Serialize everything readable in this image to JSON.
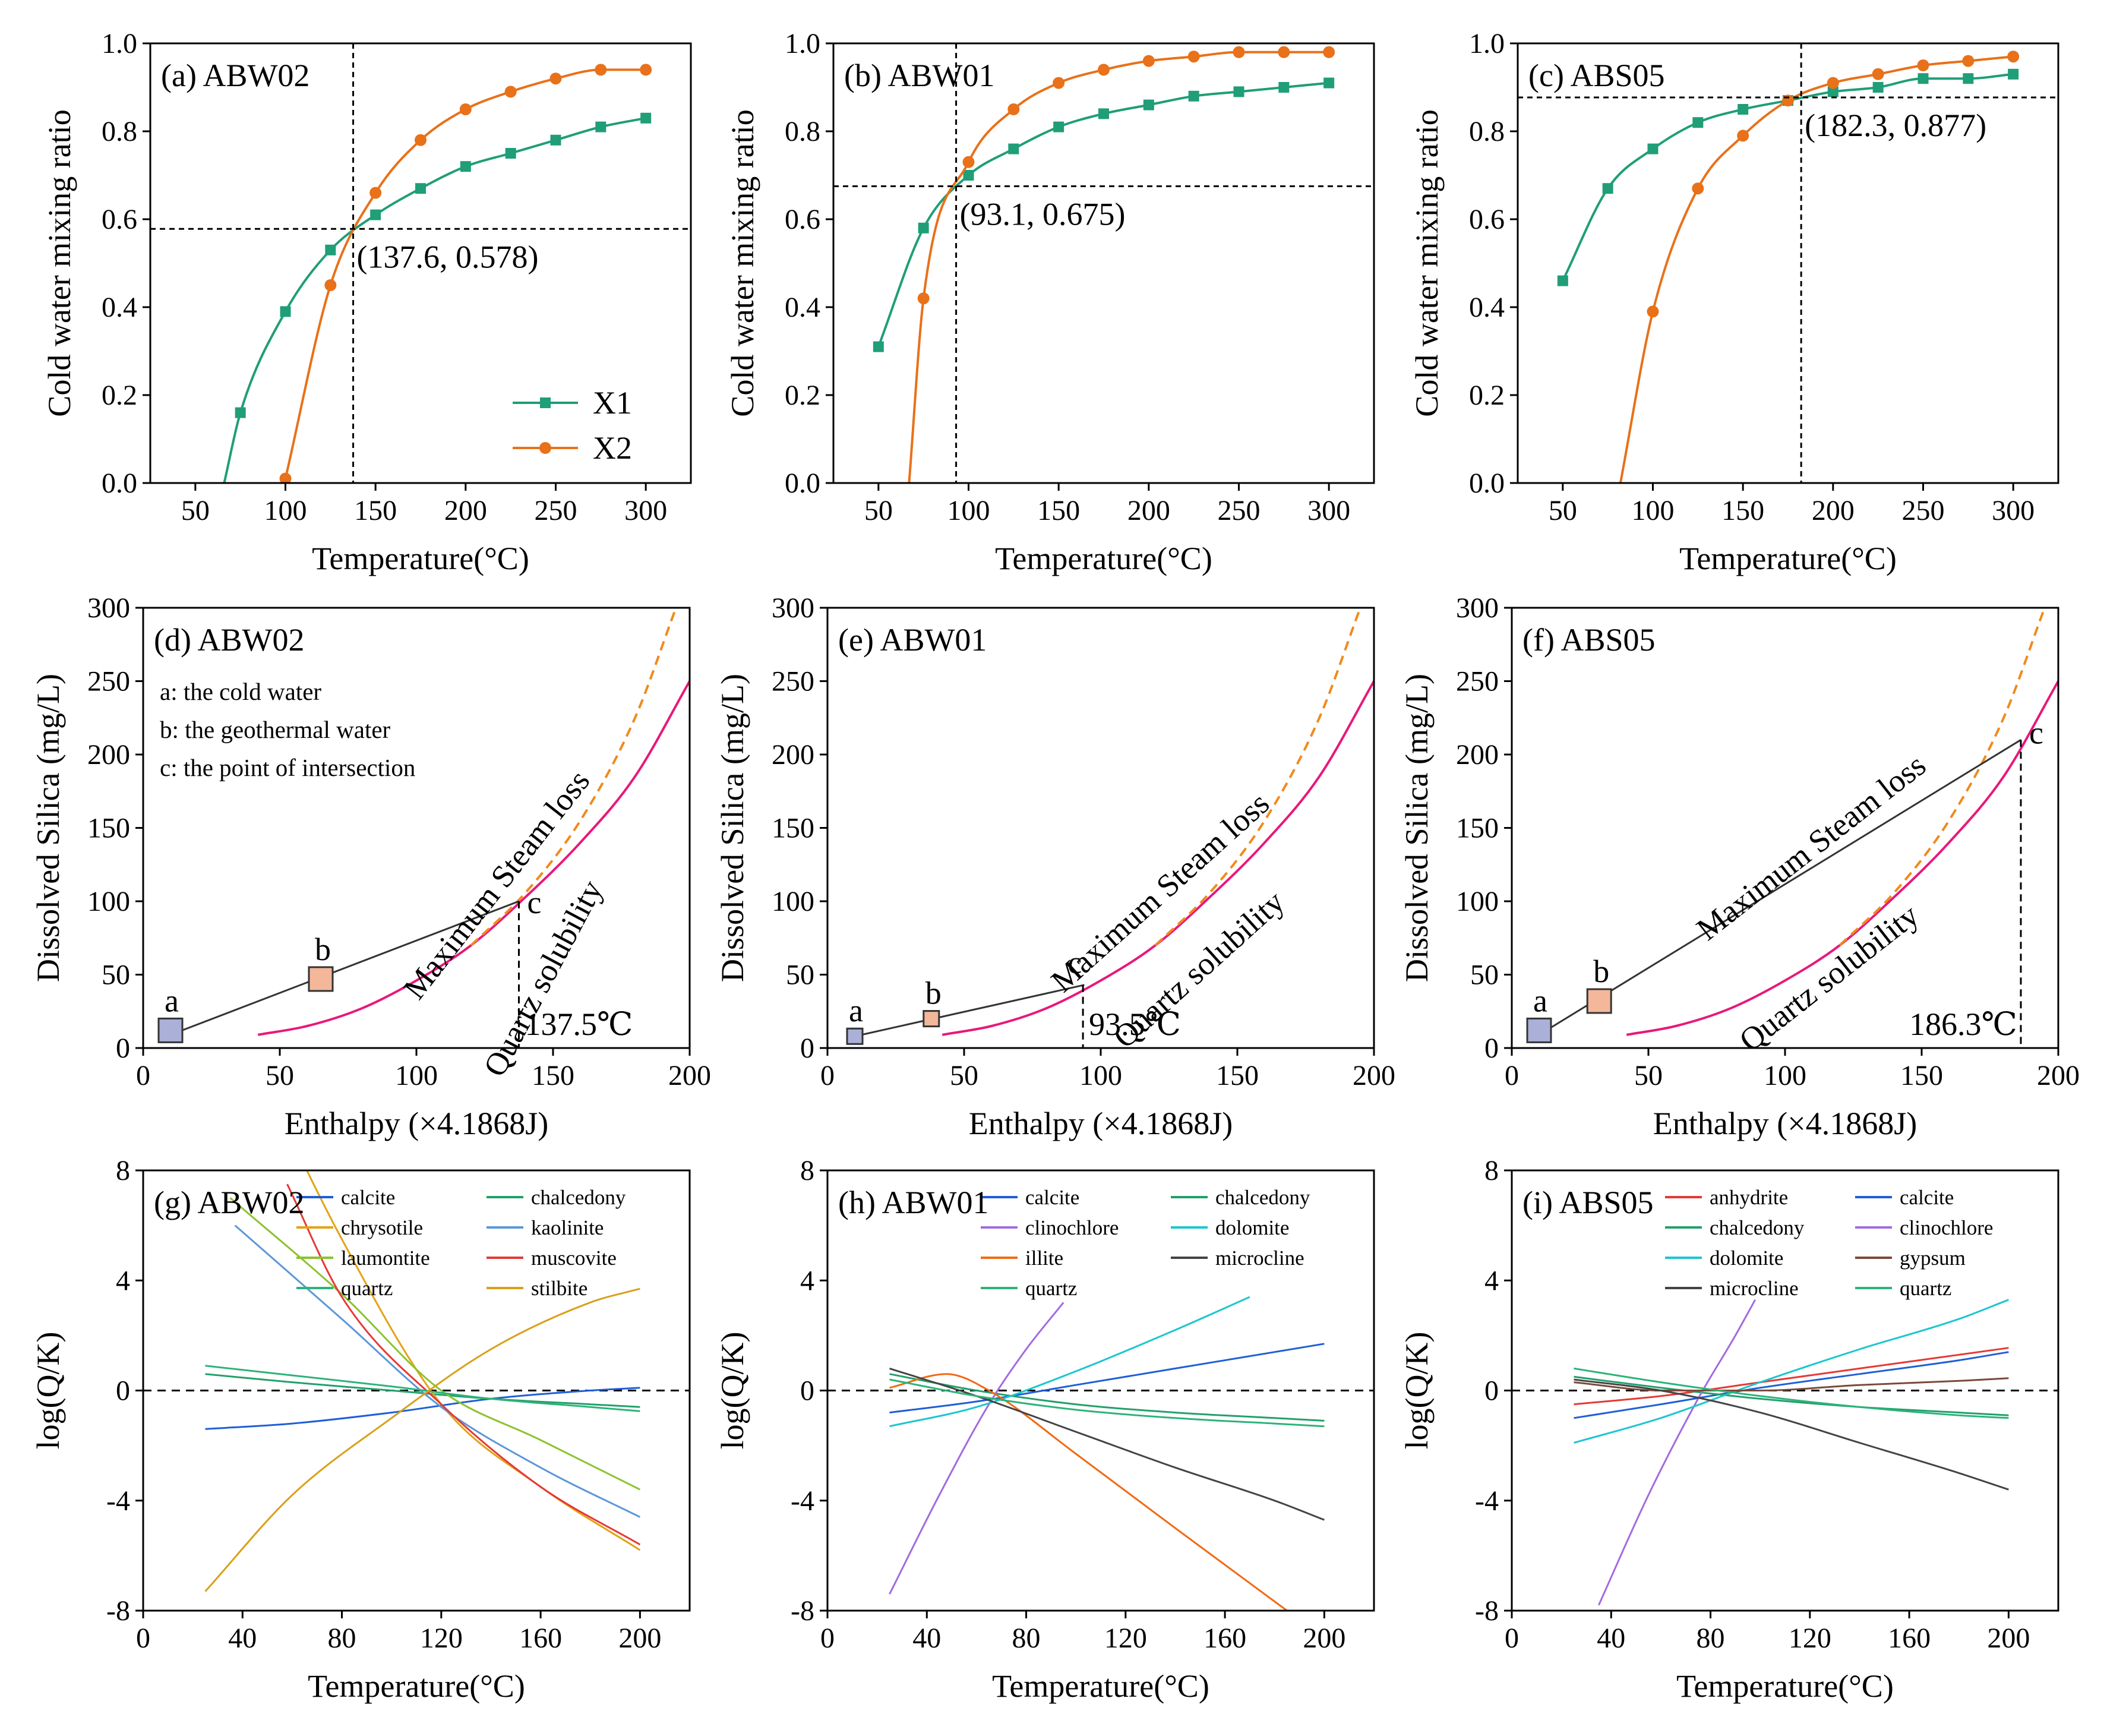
{
  "figure": {
    "note": "Nine-panel geochemistry figure for samples ABW02, ABW01 and ABS05"
  },
  "chart_data": [
    {
      "id": "a",
      "type": "line",
      "title": "(a) ABW02",
      "xlabel": "Temperature(°C)",
      "ylabel": "Cold water mixing ratio",
      "xlim": [
        25,
        325
      ],
      "ylim": [
        0,
        1.0
      ],
      "xticks": [
        50,
        100,
        150,
        200,
        250,
        300
      ],
      "yticks": [
        0.0,
        0.2,
        0.4,
        0.6,
        0.8,
        1.0
      ],
      "legend": {
        "position": "bottom-right",
        "entries": [
          "X1",
          "X2"
        ]
      },
      "intersection": {
        "x": 137.6,
        "y": 0.578,
        "label": "(137.6, 0.578)"
      },
      "series": [
        {
          "name": "X1",
          "color": "#1f9e77",
          "marker": "square",
          "start": [
            66,
            0.0
          ],
          "x": [
            75,
            100,
            125,
            150,
            175,
            200,
            225,
            250,
            275,
            300
          ],
          "y": [
            0.16,
            0.39,
            0.53,
            0.61,
            0.67,
            0.72,
            0.75,
            0.78,
            0.81,
            0.83
          ]
        },
        {
          "name": "X2",
          "color": "#e8711a",
          "marker": "circle",
          "start": null,
          "x": [
            100,
            125,
            150,
            175,
            200,
            225,
            250,
            275,
            300
          ],
          "y": [
            0.01,
            0.45,
            0.66,
            0.78,
            0.85,
            0.89,
            0.92,
            0.94,
            0.94
          ]
        }
      ]
    },
    {
      "id": "b",
      "type": "line",
      "title": "(b) ABW01",
      "xlabel": "Temperature(°C)",
      "ylabel": "Cold water mixing ratio",
      "xlim": [
        25,
        325
      ],
      "ylim": [
        0,
        1.0
      ],
      "xticks": [
        50,
        100,
        150,
        200,
        250,
        300
      ],
      "yticks": [
        0.0,
        0.2,
        0.4,
        0.6,
        0.8,
        1.0
      ],
      "intersection": {
        "x": 93.1,
        "y": 0.675,
        "label": "(93.1, 0.675)"
      },
      "series": [
        {
          "name": "X1",
          "color": "#1f9e77",
          "marker": "square",
          "start": null,
          "x": [
            50,
            75,
            100,
            125,
            150,
            175,
            200,
            225,
            250,
            275,
            300
          ],
          "y": [
            0.31,
            0.58,
            0.7,
            0.76,
            0.81,
            0.84,
            0.86,
            0.88,
            0.89,
            0.9,
            0.91
          ]
        },
        {
          "name": "X2",
          "color": "#e8711a",
          "marker": "circle",
          "start": [
            67,
            0.0
          ],
          "x": [
            75,
            100,
            125,
            150,
            175,
            200,
            225,
            250,
            275,
            300
          ],
          "y": [
            0.42,
            0.73,
            0.85,
            0.91,
            0.94,
            0.96,
            0.97,
            0.98,
            0.98,
            0.98
          ]
        }
      ]
    },
    {
      "id": "c",
      "type": "line",
      "title": "(c) ABS05",
      "xlabel": "Temperature(°C)",
      "ylabel": "Cold water mixing ratio",
      "xlim": [
        25,
        325
      ],
      "ylim": [
        0,
        1.0
      ],
      "xticks": [
        50,
        100,
        150,
        200,
        250,
        300
      ],
      "yticks": [
        0.0,
        0.2,
        0.4,
        0.6,
        0.8,
        1.0
      ],
      "intersection": {
        "x": 182.3,
        "y": 0.877,
        "label": "(182.3, 0.877)"
      },
      "series": [
        {
          "name": "X1",
          "color": "#1f9e77",
          "marker": "square",
          "start": null,
          "x": [
            50,
            75,
            100,
            125,
            150,
            175,
            200,
            225,
            250,
            275,
            300
          ],
          "y": [
            0.46,
            0.67,
            0.76,
            0.82,
            0.85,
            0.87,
            0.89,
            0.9,
            0.92,
            0.92,
            0.93
          ]
        },
        {
          "name": "X2",
          "color": "#e8711a",
          "marker": "circle",
          "start": [
            82,
            0.0
          ],
          "x": [
            100,
            125,
            150,
            175,
            200,
            225,
            250,
            275,
            300
          ],
          "y": [
            0.39,
            0.67,
            0.79,
            0.87,
            0.91,
            0.93,
            0.95,
            0.96,
            0.97
          ]
        }
      ]
    },
    {
      "id": "d",
      "type": "line",
      "title": "(d) ABW02",
      "xlabel": "Enthalpy (×4.1868J)",
      "ylabel": "Dissolved Silica (mg/L)",
      "xlim": [
        0,
        200
      ],
      "ylim": [
        0,
        300
      ],
      "xticks": [
        0,
        50,
        100,
        150,
        200
      ],
      "yticks": [
        0,
        50,
        100,
        150,
        200,
        250,
        300
      ],
      "notes": [
        "a: the cold water",
        "b: the geothermal water",
        "c: the point of intersection"
      ],
      "curve_labels": {
        "steam": "Maximum Steam loss",
        "quartz": "Quartz solubility"
      },
      "points": [
        {
          "label": "a",
          "x": 10,
          "y": 12,
          "color": "#aab0d8"
        },
        {
          "label": "b",
          "x": 65,
          "y": 47,
          "color": "#f4b79a"
        },
        {
          "label": "c",
          "x": 137.5,
          "y": 100
        }
      ],
      "mixing_line": {
        "x": [
          10,
          137.5
        ],
        "y": [
          9,
          100
        ]
      },
      "intersection_temp": {
        "x": 137.5,
        "label": "137.5℃"
      },
      "quartz_curve": {
        "x": [
          42,
          60,
          80,
          100,
          120,
          140,
          160,
          180,
          200
        ],
        "y": [
          9,
          15,
          27,
          46,
          70,
          103,
          140,
          185,
          250
        ]
      },
      "steam_curve": {
        "x": [
          120,
          140,
          160,
          180,
          195
        ],
        "y": [
          70,
          106,
          155,
          225,
          300
        ]
      }
    },
    {
      "id": "e",
      "type": "line",
      "title": "(e) ABW01",
      "xlabel": "Enthalpy (×4.1868J)",
      "ylabel": "Dissolved Silica (mg/L)",
      "xlim": [
        0,
        200
      ],
      "ylim": [
        0,
        300
      ],
      "xticks": [
        0,
        50,
        100,
        150,
        200
      ],
      "yticks": [
        0,
        50,
        100,
        150,
        200,
        250,
        300
      ],
      "curve_labels": {
        "steam": "Maximum Steam loss",
        "quartz": "Quartz solubility"
      },
      "points": [
        {
          "label": "a",
          "x": 10,
          "y": 8,
          "color": "#aab0d8"
        },
        {
          "label": "b",
          "x": 38,
          "y": 20,
          "color": "#f4b79a"
        },
        {
          "label": "c",
          "x": 94,
          "y": 43
        }
      ],
      "mixing_line": {
        "x": [
          10,
          94
        ],
        "y": [
          8,
          43
        ]
      },
      "intersection_temp": {
        "x": 93.5,
        "label": "93.5℃"
      },
      "quartz_curve": {
        "x": [
          42,
          60,
          80,
          100,
          120,
          140,
          160,
          180,
          200
        ],
        "y": [
          9,
          15,
          27,
          46,
          70,
          103,
          140,
          185,
          250
        ]
      },
      "steam_curve": {
        "x": [
          120,
          140,
          160,
          180,
          195
        ],
        "y": [
          70,
          106,
          155,
          225,
          300
        ]
      }
    },
    {
      "id": "f",
      "type": "line",
      "title": "(f) ABS05",
      "xlabel": "Enthalpy (×4.1868J)",
      "ylabel": "Dissolved Silica (mg/L)",
      "xlim": [
        0,
        200
      ],
      "ylim": [
        0,
        300
      ],
      "xticks": [
        0,
        50,
        100,
        150,
        200
      ],
      "yticks": [
        0,
        50,
        100,
        150,
        200,
        250,
        300
      ],
      "curve_labels": {
        "steam": "Maximum Steam loss",
        "quartz": "Quartz solubility"
      },
      "points": [
        {
          "label": "a",
          "x": 10,
          "y": 12,
          "color": "#aab0d8"
        },
        {
          "label": "b",
          "x": 32,
          "y": 32,
          "color": "#f4b79a"
        },
        {
          "label": "c",
          "x": 186.3,
          "y": 210
        }
      ],
      "mixing_line": {
        "x": [
          10,
          186.3
        ],
        "y": [
          9,
          210
        ]
      },
      "intersection_temp": {
        "x": 186.3,
        "label": "186.3℃"
      },
      "quartz_curve": {
        "x": [
          42,
          60,
          80,
          100,
          120,
          140,
          160,
          180,
          200
        ],
        "y": [
          9,
          15,
          27,
          46,
          70,
          103,
          140,
          185,
          250
        ]
      },
      "steam_curve": {
        "x": [
          120,
          140,
          160,
          180,
          195
        ],
        "y": [
          70,
          106,
          155,
          225,
          300
        ]
      }
    },
    {
      "id": "g",
      "type": "line",
      "title": "(g) ABW02",
      "xlabel": "Temperature(°C)",
      "ylabel": "log(Q/K)",
      "xlim": [
        0,
        220
      ],
      "ylim": [
        -8,
        8
      ],
      "xticks": [
        0,
        40,
        80,
        120,
        160,
        200
      ],
      "yticks": [
        -8,
        -4,
        0,
        4,
        8
      ],
      "series": [
        {
          "name": "calcite",
          "color": "#1f5fd6",
          "x": [
            25,
            60,
            100,
            140,
            180,
            200
          ],
          "y": [
            -1.4,
            -1.2,
            -0.8,
            -0.3,
            0.0,
            0.1
          ]
        },
        {
          "name": "chalcedony",
          "color": "#22a06b",
          "x": [
            25,
            60,
            100,
            140,
            180,
            200
          ],
          "y": [
            0.6,
            0.3,
            0.0,
            -0.3,
            -0.5,
            -0.6
          ]
        },
        {
          "name": "chrysotile",
          "color": "#e3a215",
          "x": [
            42,
            80,
            120,
            160,
            200
          ],
          "y": [
            12.5,
            5.5,
            -0.5,
            -3.5,
            -5.8
          ]
        },
        {
          "name": "kaolinite",
          "color": "#5b97d8",
          "x": [
            37,
            80,
            120,
            160,
            200
          ],
          "y": [
            6.0,
            2.6,
            -0.6,
            -2.8,
            -4.6
          ]
        },
        {
          "name": "laumontite",
          "color": "#8bc32e",
          "x": [
            35,
            80,
            120,
            160,
            200
          ],
          "y": [
            7.0,
            3.5,
            0.0,
            -1.8,
            -3.6
          ]
        },
        {
          "name": "muscovite",
          "color": "#e53935",
          "x": [
            58,
            80,
            120,
            160,
            200
          ],
          "y": [
            7.5,
            3.4,
            -0.5,
            -3.5,
            -5.6
          ]
        },
        {
          "name": "quartz",
          "color": "#2db37a",
          "x": [
            25,
            60,
            100,
            140,
            180,
            200
          ],
          "y": [
            0.9,
            0.55,
            0.15,
            -0.3,
            -0.6,
            -0.75
          ]
        },
        {
          "name": "stilbite",
          "color": "#d9a01a",
          "x": [
            25,
            60,
            100,
            140,
            180,
            200
          ],
          "y": [
            -7.3,
            -3.8,
            -1.0,
            1.5,
            3.2,
            3.7
          ]
        }
      ]
    },
    {
      "id": "h",
      "type": "line",
      "title": "(h) ABW01",
      "xlabel": "Temperature(°C)",
      "ylabel": "log(Q/K)",
      "xlim": [
        0,
        220
      ],
      "ylim": [
        -8,
        8
      ],
      "xticks": [
        0,
        40,
        80,
        120,
        160,
        200
      ],
      "yticks": [
        -8,
        -4,
        0,
        4,
        8
      ],
      "series": [
        {
          "name": "calcite",
          "color": "#1f5fd6",
          "x": [
            25,
            60,
            100,
            140,
            180,
            200
          ],
          "y": [
            -0.8,
            -0.4,
            0.2,
            0.8,
            1.4,
            1.7
          ]
        },
        {
          "name": "chalcedony",
          "color": "#22a06b",
          "x": [
            25,
            60,
            100,
            140,
            180,
            200
          ],
          "y": [
            0.6,
            0.0,
            -0.5,
            -0.8,
            -1.0,
            -1.1
          ]
        },
        {
          "name": "clinochlore",
          "color": "#a26be0",
          "x": [
            25,
            45,
            65,
            80,
            95
          ],
          "y": [
            -7.4,
            -3.8,
            -0.5,
            1.5,
            3.2
          ]
        },
        {
          "name": "dolomite",
          "color": "#1cc6cf",
          "x": [
            25,
            60,
            100,
            140,
            170
          ],
          "y": [
            -1.3,
            -0.6,
            0.7,
            2.2,
            3.4
          ]
        },
        {
          "name": "illite",
          "color": "#f06a14",
          "x": [
            25,
            48,
            65,
            100,
            140,
            185
          ],
          "y": [
            0.1,
            0.6,
            0.0,
            -2.3,
            -5.0,
            -8.0
          ]
        },
        {
          "name": "microcline",
          "color": "#444444",
          "x": [
            25,
            60,
            100,
            140,
            180,
            200
          ],
          "y": [
            0.8,
            -0.2,
            -1.5,
            -2.8,
            -4.0,
            -4.7
          ]
        },
        {
          "name": "quartz",
          "color": "#2db37a",
          "x": [
            25,
            60,
            100,
            140,
            180,
            200
          ],
          "y": [
            0.4,
            -0.2,
            -0.7,
            -1.0,
            -1.2,
            -1.3
          ]
        }
      ]
    },
    {
      "id": "i",
      "type": "line",
      "title": "(i) ABS05",
      "xlabel": "Temperature(°C)",
      "ylabel": "log(Q/K)",
      "xlim": [
        0,
        220
      ],
      "ylim": [
        -8,
        8
      ],
      "xticks": [
        0,
        40,
        80,
        120,
        160,
        200
      ],
      "yticks": [
        -8,
        -4,
        0,
        4,
        8
      ],
      "series": [
        {
          "name": "anhydrite",
          "color": "#e53935",
          "x": [
            25,
            60,
            100,
            140,
            180,
            200
          ],
          "y": [
            -0.5,
            -0.2,
            0.3,
            0.8,
            1.3,
            1.55
          ]
        },
        {
          "name": "calcite",
          "color": "#1f5fd6",
          "x": [
            25,
            60,
            100,
            140,
            180,
            200
          ],
          "y": [
            -1.0,
            -0.5,
            0.1,
            0.6,
            1.1,
            1.4
          ]
        },
        {
          "name": "chalcedony",
          "color": "#22a06b",
          "x": [
            25,
            60,
            100,
            140,
            180,
            200
          ],
          "y": [
            0.5,
            0.1,
            -0.3,
            -0.6,
            -0.8,
            -0.9
          ]
        },
        {
          "name": "clinochlore",
          "color": "#a26be0",
          "x": [
            35,
            55,
            75,
            90,
            98
          ],
          "y": [
            -7.8,
            -3.8,
            -0.3,
            2.0,
            3.3
          ]
        },
        {
          "name": "dolomite",
          "color": "#1cc6cf",
          "x": [
            25,
            60,
            100,
            140,
            180,
            200
          ],
          "y": [
            -1.9,
            -1.0,
            0.3,
            1.5,
            2.6,
            3.3
          ]
        },
        {
          "name": "gypsum",
          "color": "#7a4a3a",
          "x": [
            25,
            60,
            100,
            140,
            180,
            200
          ],
          "y": [
            0.3,
            0.0,
            0.0,
            0.2,
            0.35,
            0.45
          ]
        },
        {
          "name": "microcline",
          "color": "#444444",
          "x": [
            25,
            60,
            100,
            140,
            180,
            200
          ],
          "y": [
            0.4,
            0.0,
            -0.8,
            -1.9,
            -3.0,
            -3.6
          ]
        },
        {
          "name": "quartz",
          "color": "#2db37a",
          "x": [
            25,
            60,
            100,
            140,
            180,
            200
          ],
          "y": [
            0.8,
            0.3,
            -0.2,
            -0.6,
            -0.9,
            -1.0
          ]
        }
      ]
    }
  ]
}
